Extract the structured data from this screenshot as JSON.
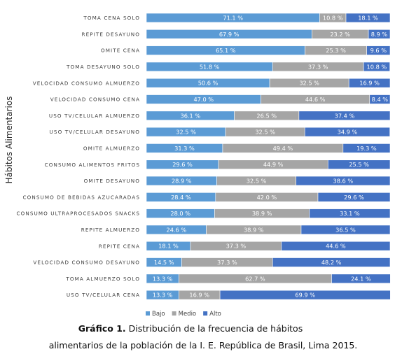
{
  "caption": {
    "label": "Gráfico 1.",
    "line1": "Distribución de la frecuencia de hábitos",
    "line2": "alimentarios de la población de la I.  E. República de Brasil, Lima 2015."
  },
  "chart_data": {
    "type": "bar",
    "orientation": "horizontal",
    "stacked": "100%",
    "ylabel": "Hábitos Alimentarios",
    "xlabel": "",
    "xlim": [
      0,
      100
    ],
    "grid": false,
    "legend_position": "bottom",
    "categories": [
      "TOMA CENA SOLO",
      "REPITE DESAYUNO",
      "OMITE CENA",
      "TOMA DESAYUNO SOLO",
      "VELOCIDAD CONSUMO ALMUERZO",
      "VELOCIDAD CONSUMO CENA",
      "USO TV/CELULAR ALMUERZO",
      "USO TV/CELULAR DESAYUNO",
      "OMITE ALMUERZO",
      "CONSUMO ALIMENTOS FRITOS",
      "OMITE DESAYUNO",
      "CONSUMO DE BEBIDAS AZUCARADAS",
      "CONSUMO ULTRAPROCESADOS SNACKS",
      "REPITE ALMUERZO",
      "REPITE CENA",
      "VELOCIDAD CONSUMO DESAYUNO",
      "TOMA ALMUERZO SOLO",
      "USO TV/CELULAR CENA"
    ],
    "series": [
      {
        "name": "Bajo",
        "color": "#5B9BD5",
        "values": [
          71.1,
          67.9,
          65.1,
          51.8,
          50.6,
          47.0,
          36.1,
          32.5,
          31.3,
          29.6,
          28.9,
          28.4,
          28.0,
          24.6,
          18.1,
          14.5,
          13.3,
          13.3
        ]
      },
      {
        "name": "Medio",
        "color": "#A5A5A5",
        "values": [
          10.8,
          23.2,
          25.3,
          37.3,
          32.5,
          44.6,
          26.5,
          32.5,
          49.4,
          44.9,
          32.5,
          42.0,
          38.9,
          38.9,
          37.3,
          37.3,
          62.7,
          16.9
        ]
      },
      {
        "name": "Alto",
        "color": "#4472C4",
        "values": [
          18.1,
          8.9,
          9.6,
          10.8,
          16.9,
          8.4,
          37.4,
          34.9,
          19.3,
          25.5,
          38.6,
          29.6,
          33.1,
          36.5,
          44.6,
          48.2,
          24.1,
          69.9
        ]
      }
    ]
  }
}
